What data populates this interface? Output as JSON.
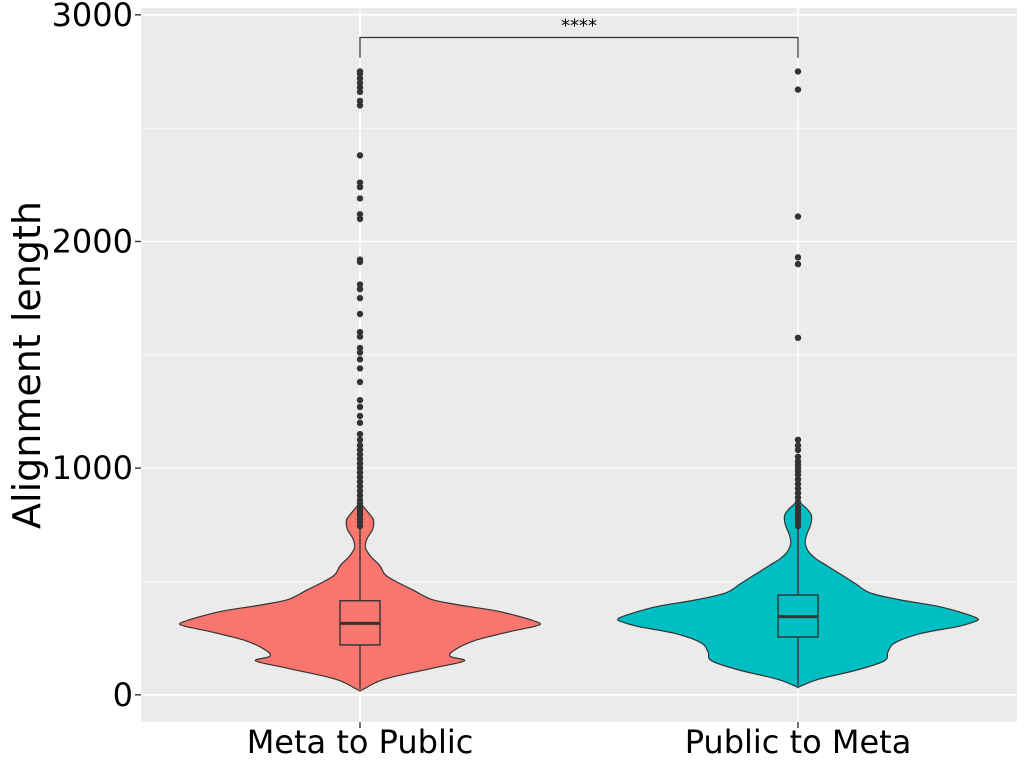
{
  "chart_data": {
    "type": "violin",
    "title": "",
    "xlabel": "",
    "ylabel": "Alignment length",
    "ylim": [
      -120,
      3030
    ],
    "y_ticks": [
      0,
      1000,
      2000,
      3000
    ],
    "y_tick_labels": [
      "0",
      "1000",
      "2000",
      "3000"
    ],
    "grid": true,
    "legend": "none",
    "categories": [
      "Meta to Public",
      "Public to Meta"
    ],
    "colors": {
      "Meta to Public": "#F8766D",
      "Public to Meta": "#00BFC4",
      "panel": "#EBEBEB",
      "grid": "#FFFFFF",
      "outline": "#333333"
    },
    "significance": {
      "label": "****",
      "from": "Meta to Public",
      "to": "Public to Meta",
      "y": 2900
    },
    "series": [
      {
        "category": "Meta to Public",
        "box": {
          "lower_whisker": 25,
          "q1": 220,
          "median": 315,
          "q3": 415,
          "upper_whisker": 735
        },
        "violin_profile": [
          [
            25,
            0.02
          ],
          [
            70,
            0.14
          ],
          [
            120,
            0.42
          ],
          [
            150,
            0.58
          ],
          [
            170,
            0.5
          ],
          [
            200,
            0.53
          ],
          [
            240,
            0.64
          ],
          [
            280,
            0.84
          ],
          [
            300,
            0.96
          ],
          [
            315,
            1.0
          ],
          [
            340,
            0.91
          ],
          [
            370,
            0.76
          ],
          [
            395,
            0.56
          ],
          [
            420,
            0.4
          ],
          [
            460,
            0.3
          ],
          [
            500,
            0.2
          ],
          [
            530,
            0.14
          ],
          [
            570,
            0.11
          ],
          [
            610,
            0.06
          ],
          [
            650,
            0.03
          ],
          [
            690,
            0.04
          ],
          [
            730,
            0.07
          ],
          [
            770,
            0.075
          ],
          [
            800,
            0.05
          ],
          [
            840,
            0.01
          ],
          [
            870,
            0.003
          ]
        ],
        "outliers": [
          745,
          760,
          775,
          790,
          800,
          815,
          830,
          845,
          860,
          880,
          900,
          920,
          940,
          960,
          980,
          1000,
          1020,
          1040,
          1060,
          1080,
          1100,
          1125,
          1150,
          1200,
          1230,
          1270,
          1300,
          1380,
          1440,
          1480,
          1510,
          1530,
          1580,
          1600,
          1680,
          1750,
          1790,
          1810,
          1910,
          1920,
          2100,
          2120,
          2190,
          2240,
          2260,
          2380,
          2600,
          2620,
          2660,
          2680,
          2700,
          2720,
          2740,
          2750
        ]
      },
      {
        "category": "Public to Meta",
        "box": {
          "lower_whisker": 40,
          "q1": 255,
          "median": 345,
          "q3": 440,
          "upper_whisker": 740
        },
        "violin_profile": [
          [
            40,
            0.02
          ],
          [
            70,
            0.12
          ],
          [
            110,
            0.33
          ],
          [
            150,
            0.48
          ],
          [
            190,
            0.5
          ],
          [
            230,
            0.54
          ],
          [
            270,
            0.68
          ],
          [
            300,
            0.88
          ],
          [
            320,
            0.97
          ],
          [
            335,
            1.0
          ],
          [
            360,
            0.92
          ],
          [
            390,
            0.78
          ],
          [
            420,
            0.56
          ],
          [
            450,
            0.4
          ],
          [
            490,
            0.32
          ],
          [
            530,
            0.24
          ],
          [
            570,
            0.16
          ],
          [
            600,
            0.1
          ],
          [
            630,
            0.06
          ],
          [
            670,
            0.04
          ],
          [
            710,
            0.05
          ],
          [
            750,
            0.07
          ],
          [
            790,
            0.075
          ],
          [
            820,
            0.05
          ],
          [
            850,
            0.01
          ],
          [
            870,
            0.003
          ]
        ],
        "outliers": [
          745,
          760,
          775,
          790,
          800,
          815,
          830,
          850,
          870,
          890,
          910,
          930,
          950,
          970,
          985,
          1000,
          1015,
          1030,
          1050,
          1080,
          1100,
          1125,
          1575,
          1900,
          1930,
          2110,
          2670,
          2750
        ]
      }
    ]
  }
}
